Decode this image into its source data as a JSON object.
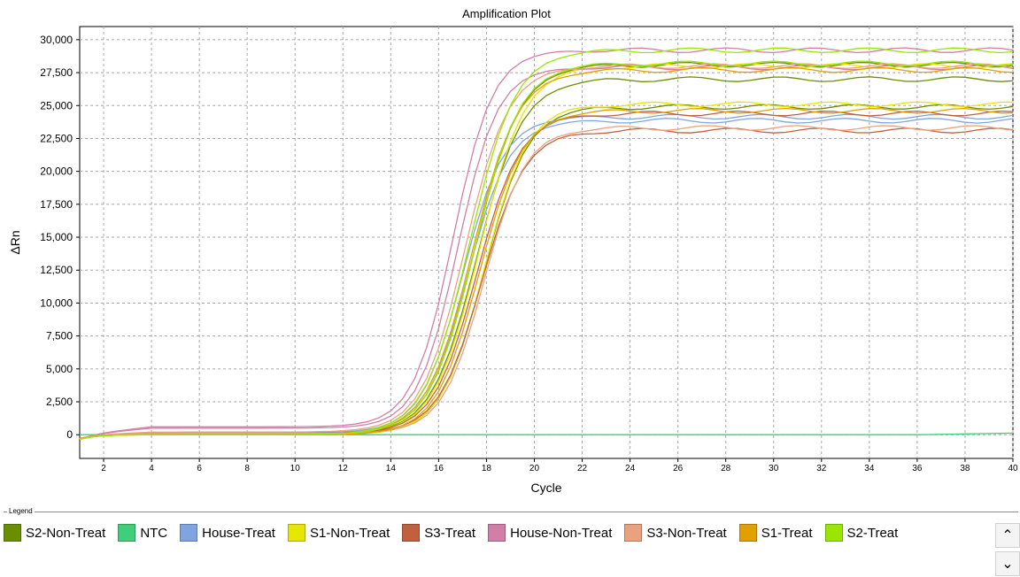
{
  "chart_data": {
    "type": "line",
    "title": "Amplification Plot",
    "xlabel": "Cycle",
    "ylabel": "ΔRn",
    "xlim": [
      1,
      40
    ],
    "ylim": [
      -1800,
      31000
    ],
    "x_ticks": [
      2,
      4,
      6,
      8,
      10,
      12,
      14,
      16,
      18,
      20,
      22,
      24,
      26,
      28,
      30,
      32,
      34,
      36,
      38,
      40
    ],
    "y_ticks": [
      0,
      2500,
      5000,
      7500,
      10000,
      12500,
      15000,
      17500,
      20000,
      22500,
      25000,
      27500,
      30000
    ],
    "y_tick_labels": [
      "0",
      "2,500",
      "5,000",
      "7,500",
      "10,000",
      "12,500",
      "15,000",
      "17,500",
      "20,000",
      "22,500",
      "25,000",
      "27,500",
      "30,000"
    ],
    "grid": true,
    "legend_position": "bottom",
    "series": [
      {
        "name": "S2-Non-Treat",
        "color": "#6b8e00",
        "curves": [
          {
            "plateau": 27000,
            "mid": 17.6,
            "slope": 1.05,
            "base": 0,
            "noise": 0.4
          },
          {
            "plateau": 28100,
            "mid": 17.5,
            "slope": 1.05,
            "base": 0,
            "noise": 0.8
          },
          {
            "plateau": 24900,
            "mid": 17.9,
            "slope": 1.1,
            "base": 0,
            "noise": 1.3
          }
        ]
      },
      {
        "name": "NTC",
        "color": "#3fcf7a",
        "curves": [
          {
            "plateau": 0,
            "mid": 17,
            "slope": 1,
            "base": 0,
            "noise": 0,
            "tail": 120
          }
        ]
      },
      {
        "name": "House-Treat",
        "color": "#7fa4e0",
        "curves": [
          {
            "plateau": 24000,
            "mid": 17.0,
            "slope": 1.15,
            "base": 150,
            "noise": 1.7
          },
          {
            "plateau": 23700,
            "mid": 17.2,
            "slope": 1.15,
            "base": 150,
            "noise": 2.1
          }
        ]
      },
      {
        "name": "S1-Non-Treat",
        "color": "#e6e600",
        "curves": [
          {
            "plateau": 28000,
            "mid": 17.7,
            "slope": 1.05,
            "base": 0,
            "noise": 2.6
          },
          {
            "plateau": 25100,
            "mid": 17.9,
            "slope": 1.1,
            "base": 0,
            "noise": 3.1
          }
        ]
      },
      {
        "name": "S3-Treat",
        "color": "#c0603e",
        "curves": [
          {
            "plateau": 24300,
            "mid": 17.6,
            "slope": 1.1,
            "base": 100,
            "noise": 3.4
          },
          {
            "plateau": 23000,
            "mid": 17.8,
            "slope": 1.1,
            "base": 100,
            "noise": 3.9
          }
        ]
      },
      {
        "name": "House-Non-Treat",
        "color": "#d07fa6",
        "curves": [
          {
            "plateau": 28600,
            "mid": 16.6,
            "slope": 1.2,
            "base": 600,
            "noise": 4.2
          },
          {
            "plateau": 27400,
            "mid": 16.8,
            "slope": 1.2,
            "base": 500,
            "noise": 4.7
          }
        ]
      },
      {
        "name": "S3-Non-Treat",
        "color": "#e8a27e",
        "curves": [
          {
            "plateau": 27800,
            "mid": 17.1,
            "slope": 1.1,
            "base": 200,
            "noise": 5.1
          },
          {
            "plateau": 23200,
            "mid": 17.9,
            "slope": 1.15,
            "base": 100,
            "noise": 5.5
          }
        ]
      },
      {
        "name": "S1-Treat",
        "color": "#e0a000",
        "curves": [
          {
            "plateau": 27700,
            "mid": 17.4,
            "slope": 1.05,
            "base": 0,
            "noise": 5.9
          },
          {
            "plateau": 24600,
            "mid": 17.7,
            "slope": 1.1,
            "base": 0,
            "noise": 6.3
          }
        ]
      },
      {
        "name": "S2-Treat",
        "color": "#9ae600",
        "curves": [
          {
            "plateau": 29200,
            "mid": 17.3,
            "slope": 1.05,
            "base": 0,
            "noise": 6.7
          },
          {
            "plateau": 28200,
            "mid": 17.5,
            "slope": 1.05,
            "base": 0,
            "noise": 7.1
          }
        ]
      }
    ]
  },
  "legend": {
    "caption": "Legend",
    "scroll_up": "⌃",
    "scroll_down": "⌄"
  }
}
